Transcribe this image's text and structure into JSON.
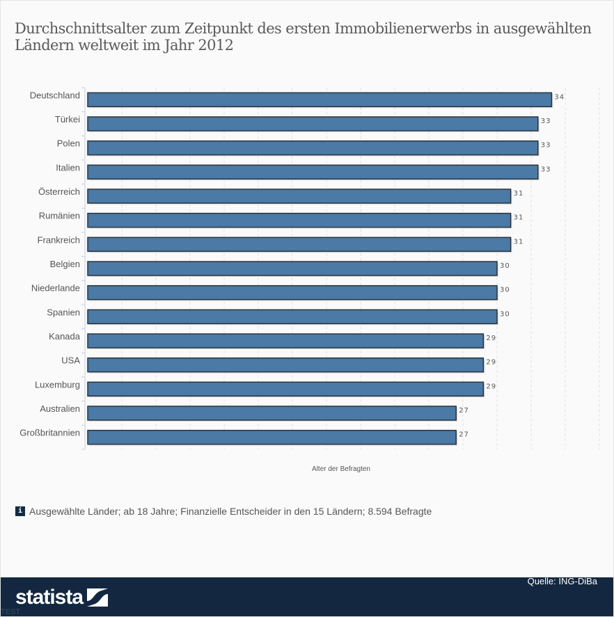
{
  "title": "Durchschnittsalter zum Zeitpunkt des ersten Immobilienerwerbs in ausgewählten Ländern weltweit im Jahr 2012",
  "colors": {
    "bar": "#4a7aa5",
    "bar_border": "#2a3440",
    "footer": "#132840"
  },
  "chart_data": {
    "type": "bar",
    "orientation": "horizontal",
    "title": "Durchschnittsalter zum Zeitpunkt des ersten Immobilienerwerbs in ausgewählten Ländern weltweit im Jahr 2012",
    "categories": [
      "Deutschland",
      "Türkei",
      "Polen",
      "Italien",
      "Österreich",
      "Rumänien",
      "Frankreich",
      "Belgien",
      "Niederlande",
      "Spanien",
      "Kanada",
      "USA",
      "Luxemburg",
      "Australien",
      "Großbritannien"
    ],
    "values": [
      34,
      33,
      33,
      33,
      31,
      31,
      31,
      30,
      30,
      30,
      29,
      29,
      29,
      27,
      27
    ],
    "xlabel": "Alter der Befragten",
    "ylabel": "",
    "xlim": [
      0,
      37.5
    ],
    "grid": true,
    "data_labels": true
  },
  "note": "Ausgewählte Länder; ab 18 Jahre; Finanzielle Entscheider in den 15 Ländern; 8.594 Befragte",
  "footer": {
    "source": "Quelle: ING-DiBa",
    "brand": "statista",
    "watermark": "TEST"
  }
}
